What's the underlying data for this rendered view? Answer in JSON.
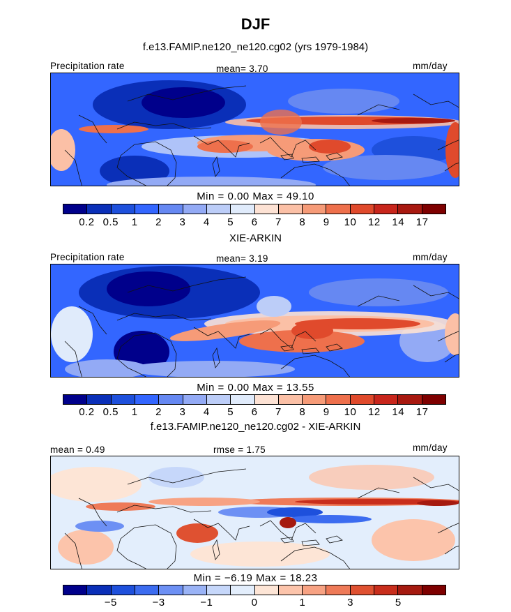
{
  "title": "DJF",
  "colors": {
    "precip_scale": [
      "#00008b",
      "#0a2fb8",
      "#1e50dc",
      "#3366ff",
      "#6688f2",
      "#93aaf5",
      "#bccdf8",
      "#e0ebfb",
      "#fde2d4",
      "#fbc0a6",
      "#f69b78",
      "#ee704c",
      "#e04a2c",
      "#c8261c",
      "#a81910",
      "#7e0000"
    ],
    "diff_scale": [
      "#00008b",
      "#0a2fb8",
      "#1e50dc",
      "#3c6cf0",
      "#6d90f4",
      "#9ab3f6",
      "#c6d7fa",
      "#e3eefc",
      "#fde5d6",
      "#fcc4ab",
      "#f7a283",
      "#ee7a58",
      "#df5131",
      "#c82e1c",
      "#a51a10",
      "#7e0000"
    ]
  },
  "panels": [
    {
      "title": "f.e13.FAMIP.ne120_ne120.cg02 (yrs 1979-1984)",
      "left_label": "Precipitation rate",
      "center_label": "mean=    3.70",
      "right_label": "mm/day",
      "stats": "Min =    0.00  Max =   49.10",
      "ticks": [
        "0.2",
        "0.5",
        "1",
        "2",
        "3",
        "4",
        "5",
        "6",
        "7",
        "8",
        "9",
        "10",
        "12",
        "14",
        "17"
      ]
    },
    {
      "title": "XIE-ARKIN",
      "left_label": "Precipitation rate",
      "center_label": "mean=    3.19",
      "right_label": "mm/day",
      "stats": "Min =    0.00  Max =   13.55",
      "ticks": [
        "0.2",
        "0.5",
        "1",
        "2",
        "3",
        "4",
        "5",
        "6",
        "7",
        "8",
        "9",
        "10",
        "12",
        "14",
        "17"
      ]
    },
    {
      "title": "f.e13.FAMIP.ne120_ne120.cg02 - XIE-ARKIN",
      "left_label": "mean =    0.49",
      "center_label": "rmse =    1.75",
      "right_label": "mm/day",
      "stats": "Min =   −6.19  Max =   18.23",
      "ticks": [
        "−5",
        "−3",
        "−1",
        "0",
        "1",
        "3",
        "5"
      ]
    }
  ],
  "chart_data": [
    {
      "type": "heatmap",
      "title": "f.e13.FAMIP.ne120_ne120.cg02 (yrs 1979-1984)",
      "season": "DJF",
      "variable": "Precipitation rate",
      "units": "mm/day",
      "mean": 3.7,
      "min": 0.0,
      "max": 49.1,
      "contour_levels": [
        0.2,
        0.5,
        1,
        2,
        3,
        4,
        5,
        6,
        7,
        8,
        9,
        10,
        12,
        14,
        17
      ]
    },
    {
      "type": "heatmap",
      "title": "XIE-ARKIN",
      "season": "DJF",
      "variable": "Precipitation rate",
      "units": "mm/day",
      "mean": 3.19,
      "min": 0.0,
      "max": 13.55,
      "contour_levels": [
        0.2,
        0.5,
        1,
        2,
        3,
        4,
        5,
        6,
        7,
        8,
        9,
        10,
        12,
        14,
        17
      ]
    },
    {
      "type": "heatmap",
      "title": "f.e13.FAMIP.ne120_ne120.cg02 - XIE-ARKIN",
      "season": "DJF",
      "units": "mm/day",
      "mean": 0.49,
      "rmse": 1.75,
      "min": -6.19,
      "max": 18.23,
      "contour_levels_labeled": [
        -5,
        -3,
        -1,
        0,
        1,
        3,
        5
      ]
    }
  ]
}
